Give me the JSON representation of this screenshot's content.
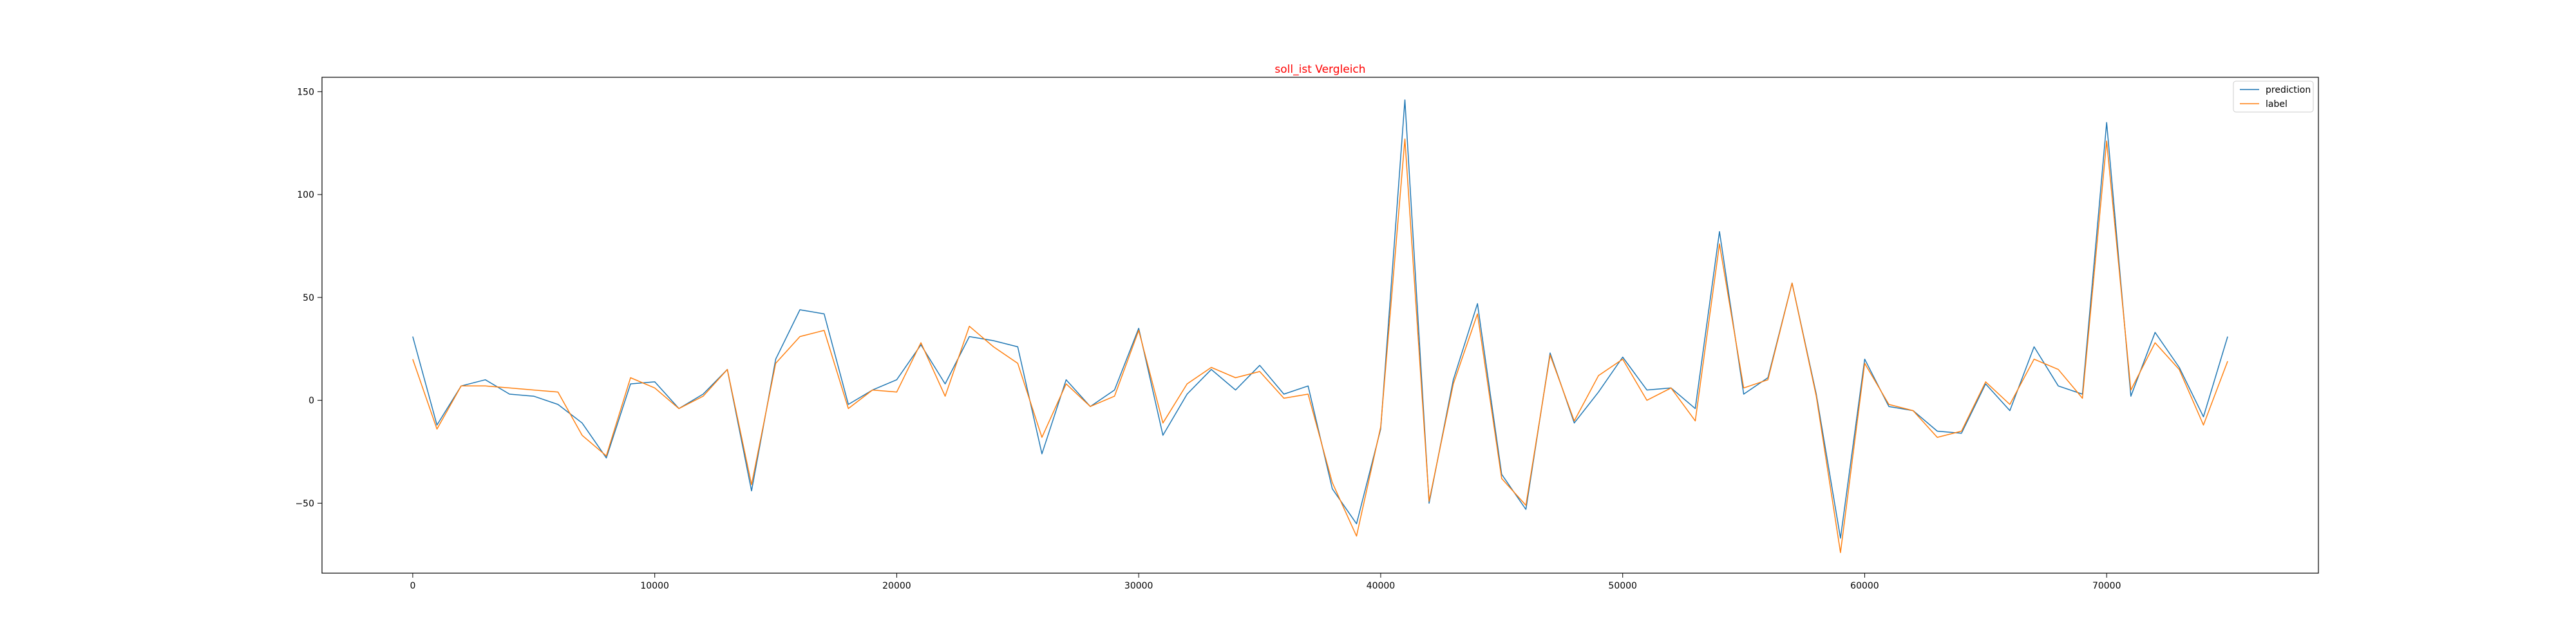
{
  "colors": {
    "title": "#ff0000",
    "prediction": "#1f77b4",
    "label": "#ff7f0e",
    "axes": "#000000",
    "legend_border": "#cccccc"
  },
  "chart_data": {
    "type": "line",
    "title": "soll_ist Vergleich",
    "xlabel": "",
    "ylabel": "",
    "xlim": [
      -3750,
      78750
    ],
    "ylim": [
      -84,
      157
    ],
    "xticks": [
      0,
      10000,
      20000,
      30000,
      40000,
      50000,
      60000,
      70000
    ],
    "xtick_labels": [
      "0",
      "10000",
      "20000",
      "30000",
      "40000",
      "50000",
      "60000",
      "70000"
    ],
    "yticks": [
      -50,
      0,
      50,
      100,
      150
    ],
    "ytick_labels": [
      "−50",
      "0",
      "50",
      "100",
      "150"
    ],
    "grid": false,
    "legend_position": "top-right",
    "x": [
      0,
      1000,
      2000,
      3000,
      4000,
      5000,
      6000,
      7000,
      8000,
      9000,
      10000,
      11000,
      12000,
      13000,
      14000,
      15000,
      16000,
      17000,
      18000,
      19000,
      20000,
      21000,
      22000,
      23000,
      24000,
      25000,
      26000,
      27000,
      28000,
      29000,
      30000,
      31000,
      32000,
      33000,
      34000,
      35000,
      36000,
      37000,
      38000,
      39000,
      40000,
      41000,
      42000,
      43000,
      44000,
      45000,
      46000,
      47000,
      48000,
      49000,
      50000,
      51000,
      52000,
      53000,
      54000,
      55000,
      56000,
      57000,
      58000,
      59000,
      60000,
      61000,
      62000,
      63000,
      64000,
      65000,
      66000,
      67000,
      68000,
      69000,
      70000,
      71000,
      72000,
      73000,
      74000,
      75000
    ],
    "series": [
      {
        "name": "prediction",
        "values": [
          31,
          -12,
          7,
          10,
          3,
          2,
          -2,
          -11,
          -28,
          8,
          9,
          -4,
          3,
          15,
          -44,
          20,
          44,
          42,
          -2,
          5,
          10,
          27,
          8,
          31,
          29,
          26,
          -26,
          10,
          -3,
          5,
          35,
          -17,
          3,
          15,
          5,
          17,
          3,
          7,
          -43,
          -60,
          -14,
          146,
          -50,
          10,
          47,
          -36,
          -53,
          23,
          -11,
          4,
          21,
          5,
          6,
          -4,
          82,
          3,
          11,
          57,
          3,
          -67,
          20,
          -3,
          -5,
          -15,
          -16,
          8,
          -5,
          26,
          7,
          3,
          135,
          2,
          33,
          16,
          -8,
          31
        ]
      },
      {
        "name": "label",
        "values": [
          20,
          -14,
          7,
          7,
          6,
          5,
          4,
          -17,
          -27,
          11,
          6,
          -4,
          2,
          15,
          -41,
          18,
          31,
          34,
          -4,
          5,
          4,
          28,
          2,
          36,
          26,
          18,
          -18,
          8,
          -3,
          2,
          34,
          -11,
          8,
          16,
          11,
          14,
          1,
          3,
          -40,
          -66,
          -13,
          127,
          -49,
          8,
          42,
          -38,
          -51,
          22,
          -10,
          12,
          20,
          0,
          6,
          -10,
          76,
          6,
          10,
          57,
          2,
          -74,
          18,
          -2,
          -5,
          -18,
          -15,
          9,
          -2,
          20,
          15,
          1,
          126,
          5,
          28,
          15,
          -12,
          19
        ]
      }
    ]
  }
}
